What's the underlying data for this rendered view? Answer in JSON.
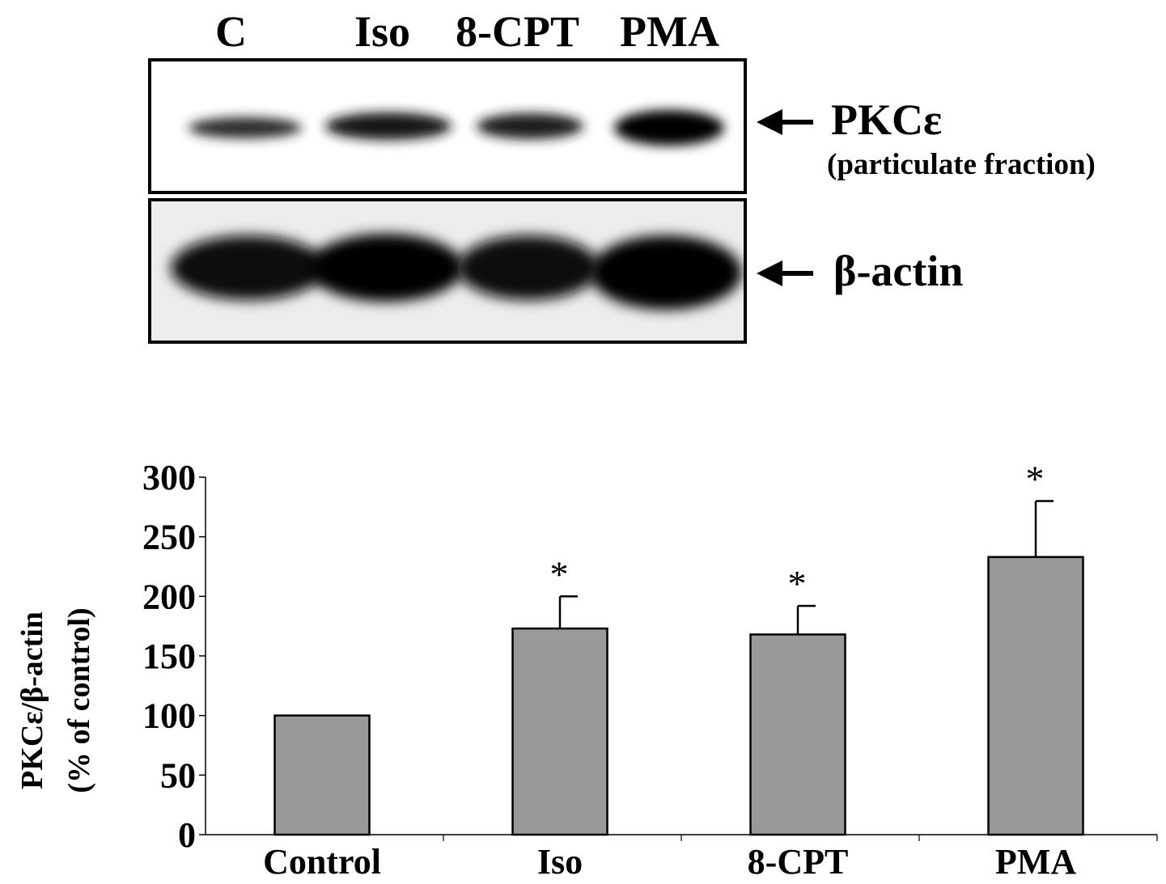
{
  "blot": {
    "lanes": [
      "C",
      "Iso",
      "8-CPT",
      "PMA"
    ],
    "rows": [
      {
        "label": "PKCε",
        "sublabel": "(particulate fraction)"
      },
      {
        "label": "β-actin",
        "sublabel": ""
      }
    ]
  },
  "chart_data": {
    "type": "bar",
    "categories": [
      "Control",
      "Iso",
      "8-CPT",
      "PMA"
    ],
    "values": [
      100,
      173,
      168,
      233
    ],
    "errors": [
      0,
      27,
      24,
      47
    ],
    "significance": [
      "",
      "*",
      "*",
      "*"
    ],
    "ylabel_line1": "PKCε/β-actin",
    "ylabel_line2": "(% of control)",
    "xlabel": "",
    "yticks": [
      0,
      50,
      100,
      150,
      200,
      250,
      300
    ],
    "ylim": [
      0,
      300
    ],
    "bar_color": "#999999",
    "grid": false
  }
}
